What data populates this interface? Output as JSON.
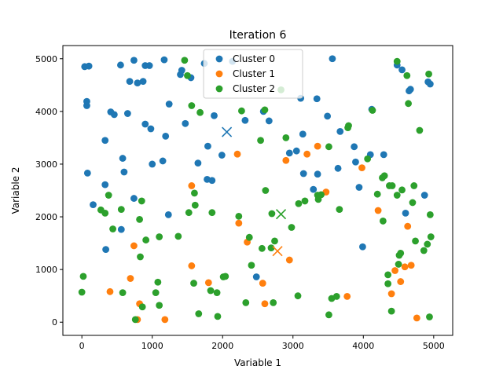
{
  "chart_data": {
    "type": "scatter",
    "title": "Iteration 6",
    "xlabel": "Variable 1",
    "ylabel": "Variable 2",
    "xlim": [
      -270,
      5270
    ],
    "ylim": [
      -250,
      5250
    ],
    "xticks": [
      0,
      1000,
      2000,
      3000,
      4000,
      5000
    ],
    "yticks": [
      0,
      1000,
      2000,
      3000,
      4000,
      5000
    ],
    "grid": false,
    "legend_position": "top-center",
    "series": [
      {
        "name": "Cluster 0",
        "color": "#1f77b4",
        "centroid": [
          2060,
          3610
        ],
        "points": [
          [
            40,
            4850
          ],
          [
            100,
            4860
          ],
          [
            70,
            4110
          ],
          [
            70,
            4190
          ],
          [
            80,
            2830
          ],
          [
            160,
            2230
          ],
          [
            330,
            2610
          ],
          [
            330,
            3450
          ],
          [
            340,
            1380
          ],
          [
            410,
            3990
          ],
          [
            460,
            3940
          ],
          [
            560,
            1760
          ],
          [
            550,
            4880
          ],
          [
            600,
            2850
          ],
          [
            580,
            3110
          ],
          [
            650,
            3960
          ],
          [
            680,
            4570
          ],
          [
            740,
            4970
          ],
          [
            790,
            4540
          ],
          [
            740,
            2350
          ],
          [
            870,
            4570
          ],
          [
            900,
            4870
          ],
          [
            900,
            3760
          ],
          [
            960,
            4870
          ],
          [
            980,
            3670
          ],
          [
            1000,
            3000
          ],
          [
            1150,
            3060
          ],
          [
            1170,
            4980
          ],
          [
            1190,
            3530
          ],
          [
            1230,
            2040
          ],
          [
            1240,
            4140
          ],
          [
            1400,
            4700
          ],
          [
            1420,
            4780
          ],
          [
            1470,
            3770
          ],
          [
            1550,
            4640
          ],
          [
            1650,
            3020
          ],
          [
            1740,
            4910
          ],
          [
            1780,
            2710
          ],
          [
            1790,
            3340
          ],
          [
            1850,
            2690
          ],
          [
            1880,
            3920
          ],
          [
            1990,
            3170
          ],
          [
            2140,
            4950
          ],
          [
            2320,
            3830
          ],
          [
            2480,
            860
          ],
          [
            2580,
            4000
          ],
          [
            2660,
            3820
          ],
          [
            2950,
            3210
          ],
          [
            3050,
            3250
          ],
          [
            3110,
            4250
          ],
          [
            3150,
            2820
          ],
          [
            3140,
            3570
          ],
          [
            3290,
            2520
          ],
          [
            3350,
            2810
          ],
          [
            3340,
            4240
          ],
          [
            3490,
            3910
          ],
          [
            3560,
            5000
          ],
          [
            3640,
            2920
          ],
          [
            3670,
            3620
          ],
          [
            3870,
            3330
          ],
          [
            3940,
            2560
          ],
          [
            3990,
            1430
          ],
          [
            3890,
            3040
          ],
          [
            4100,
            3180
          ],
          [
            4120,
            4040
          ],
          [
            4290,
            3180
          ],
          [
            4480,
            4880
          ],
          [
            4550,
            4790
          ],
          [
            4600,
            2070
          ],
          [
            4650,
            4390
          ],
          [
            4670,
            4420
          ],
          [
            4920,
            4560
          ],
          [
            4950,
            4520
          ],
          [
            4870,
            2410
          ]
        ]
      },
      {
        "name": "Cluster 1",
        "color": "#ff7f0e",
        "centroid": [
          2780,
          1350
        ],
        "points": [
          [
            400,
            580
          ],
          [
            690,
            830
          ],
          [
            740,
            1450
          ],
          [
            790,
            50
          ],
          [
            820,
            350
          ],
          [
            1180,
            50
          ],
          [
            1560,
            1070
          ],
          [
            1560,
            2590
          ],
          [
            1800,
            750
          ],
          [
            2210,
            3190
          ],
          [
            2230,
            1880
          ],
          [
            2350,
            1520
          ],
          [
            2570,
            740
          ],
          [
            2600,
            350
          ],
          [
            2900,
            3070
          ],
          [
            2950,
            1180
          ],
          [
            3200,
            3190
          ],
          [
            3350,
            3340
          ],
          [
            3470,
            2470
          ],
          [
            3770,
            490
          ],
          [
            3980,
            2930
          ],
          [
            4210,
            2120
          ],
          [
            4400,
            540
          ],
          [
            4450,
            980
          ],
          [
            4530,
            770
          ],
          [
            4590,
            1050
          ],
          [
            4630,
            1820
          ],
          [
            4680,
            1080
          ],
          [
            4760,
            80
          ]
        ]
      },
      {
        "name": "Cluster 2",
        "color": "#2ca02c",
        "centroid": [
          2830,
          2050
        ],
        "points": [
          [
            0,
            570
          ],
          [
            20,
            870
          ],
          [
            270,
            2130
          ],
          [
            330,
            2070
          ],
          [
            380,
            2410
          ],
          [
            440,
            1770
          ],
          [
            560,
            2140
          ],
          [
            580,
            560
          ],
          [
            760,
            50
          ],
          [
            820,
            1950
          ],
          [
            830,
            1240
          ],
          [
            850,
            2300
          ],
          [
            860,
            290
          ],
          [
            910,
            1560
          ],
          [
            1050,
            560
          ],
          [
            1080,
            760
          ],
          [
            1100,
            320
          ],
          [
            1100,
            1620
          ],
          [
            1370,
            1630
          ],
          [
            1460,
            4970
          ],
          [
            1500,
            4680
          ],
          [
            1520,
            2080
          ],
          [
            1560,
            4110
          ],
          [
            1590,
            740
          ],
          [
            1610,
            2220
          ],
          [
            1600,
            2450
          ],
          [
            1660,
            160
          ],
          [
            1680,
            3980
          ],
          [
            1830,
            600
          ],
          [
            1850,
            2080
          ],
          [
            1920,
            560
          ],
          [
            1930,
            110
          ],
          [
            2010,
            860
          ],
          [
            2040,
            870
          ],
          [
            2230,
            2010
          ],
          [
            2270,
            4010
          ],
          [
            2330,
            370
          ],
          [
            2380,
            1610
          ],
          [
            2410,
            1080
          ],
          [
            2540,
            3450
          ],
          [
            2560,
            1400
          ],
          [
            2610,
            2500
          ],
          [
            2600,
            4030
          ],
          [
            2690,
            1410
          ],
          [
            2700,
            2060
          ],
          [
            2720,
            370
          ],
          [
            2740,
            1540
          ],
          [
            2830,
            4410
          ],
          [
            2900,
            3500
          ],
          [
            2980,
            1800
          ],
          [
            3070,
            500
          ],
          [
            3080,
            2250
          ],
          [
            3170,
            2300
          ],
          [
            3350,
            2410
          ],
          [
            3360,
            2330
          ],
          [
            3400,
            2420
          ],
          [
            3510,
            3330
          ],
          [
            3510,
            140
          ],
          [
            3550,
            450
          ],
          [
            3620,
            490
          ],
          [
            3660,
            2140
          ],
          [
            3780,
            3690
          ],
          [
            3790,
            3730
          ],
          [
            4060,
            3100
          ],
          [
            4130,
            4020
          ],
          [
            4200,
            2430
          ],
          [
            4270,
            2740
          ],
          [
            4280,
            1920
          ],
          [
            4300,
            2780
          ],
          [
            4350,
            900
          ],
          [
            4370,
            2590
          ],
          [
            4410,
            2590
          ],
          [
            4480,
            2410
          ],
          [
            4480,
            4950
          ],
          [
            4500,
            1100
          ],
          [
            4510,
            1270
          ],
          [
            4530,
            1310
          ],
          [
            4550,
            2510
          ],
          [
            4620,
            4680
          ],
          [
            4640,
            4150
          ],
          [
            4700,
            2270
          ],
          [
            4720,
            2590
          ],
          [
            4740,
            1540
          ],
          [
            4800,
            3640
          ],
          [
            4860,
            1360
          ],
          [
            4910,
            1480
          ],
          [
            4940,
            100
          ],
          [
            4930,
            4710
          ],
          [
            4950,
            2040
          ],
          [
            4960,
            1620
          ],
          [
            4400,
            210
          ],
          [
            4350,
            730
          ]
        ]
      }
    ]
  }
}
